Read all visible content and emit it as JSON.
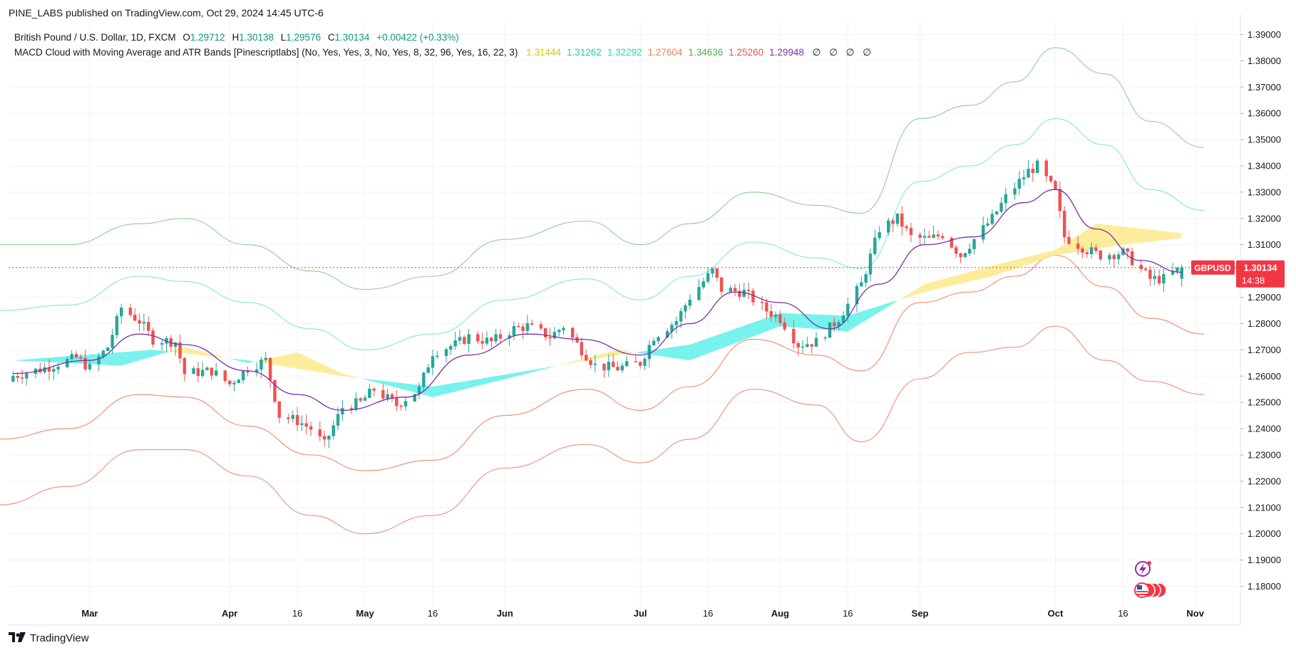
{
  "header": {
    "published": "PINE_LABS published on TradingView.com, Oct 29, 2024 14:45 UTC-6"
  },
  "legend": {
    "symbol": "British Pound / U.S. Dollar, 1D, FXCM",
    "o_label": "O",
    "o_value": "1.29712",
    "h_label": "H",
    "h_value": "1.30138",
    "l_label": "L",
    "l_value": "1.29576",
    "c_label": "C",
    "c_value": "1.30134",
    "change": "+0.00422 (+0.33%)",
    "indicator": "MACD Cloud with Moving Average and ATR Bands [Pinescriptlabs] (No, Yes, Yes, 3, No, Yes, 8, 32, 96, Yes, 16, 22, 3)",
    "indicator_values": [
      {
        "value": "1.31444",
        "color": "#e5c200"
      },
      {
        "value": "1.31262",
        "color": "#26c6a6"
      },
      {
        "value": "1.32292",
        "color": "#2ad4b0"
      },
      {
        "value": "1.27604",
        "color": "#f57c4e"
      },
      {
        "value": "1.34636",
        "color": "#4caf50"
      },
      {
        "value": "1.25260",
        "color": "#e05252"
      },
      {
        "value": "1.29948",
        "color": "#7b2fa8"
      }
    ],
    "nulls": "∅ ∅ ∅ ∅"
  },
  "price_badge": {
    "symbol": "GBPUSD",
    "price": "1.30134",
    "countdown": "14:38"
  },
  "footer": {
    "brand": "TradingView",
    "logo_icon": "tradingview-logo-icon"
  },
  "colors": {
    "up": "#26a69a",
    "down": "#ef5350",
    "ma": "#7b2fa8",
    "cloud_bull": "#5ff0ea",
    "cloud_bear": "#fde98a",
    "atr_up_outer": "#8fd08f",
    "atr_up_inner": "#7fe8dc",
    "atr_dn_inner": "#f4896b",
    "atr_dn_outer": "#f0907a",
    "badge": "#f23645"
  },
  "chart_data": {
    "type": "candlestick",
    "y_range": [
      1.175,
      1.395
    ],
    "y_ticks": [
      "1.39000",
      "1.38000",
      "1.37000",
      "1.36000",
      "1.35000",
      "1.34000",
      "1.33000",
      "1.32000",
      "1.31000",
      "1.30000",
      "1.29000",
      "1.28000",
      "1.27000",
      "1.26000",
      "1.25000",
      "1.24000",
      "1.23000",
      "1.22000",
      "1.21000",
      "1.20000",
      "1.19000",
      "1.18000"
    ],
    "x_range_days": [
      "2024-02-12",
      "2024-11-11"
    ],
    "x_ticks": [
      {
        "label": "Mar",
        "date": "2024-03-01"
      },
      {
        "label": "Apr",
        "date": "2024-04-01"
      },
      {
        "label": "16",
        "date": "2024-04-16"
      },
      {
        "label": "May",
        "date": "2024-05-01"
      },
      {
        "label": "16",
        "date": "2024-05-16"
      },
      {
        "label": "Jun",
        "date": "2024-06-01"
      },
      {
        "label": "Jul",
        "date": "2024-07-01"
      },
      {
        "label": "16",
        "date": "2024-07-16"
      },
      {
        "label": "Aug",
        "date": "2024-08-01"
      },
      {
        "label": "16",
        "date": "2024-08-16"
      },
      {
        "label": "Sep",
        "date": "2024-09-01"
      },
      {
        "label": "Oct",
        "date": "2024-10-01"
      },
      {
        "label": "16",
        "date": "2024-10-16"
      },
      {
        "label": "Nov",
        "date": "2024-11-01"
      }
    ],
    "close_anchors": [
      [
        "2024-02-13",
        1.26
      ],
      [
        "2024-02-20",
        1.263
      ],
      [
        "2024-02-27",
        1.267
      ],
      [
        "2024-03-01",
        1.263
      ],
      [
        "2024-03-05",
        1.271
      ],
      [
        "2024-03-08",
        1.286
      ],
      [
        "2024-03-12",
        1.281
      ],
      [
        "2024-03-15",
        1.274
      ],
      [
        "2024-03-20",
        1.273
      ],
      [
        "2024-03-22",
        1.261
      ],
      [
        "2024-03-28",
        1.262
      ],
      [
        "2024-04-01",
        1.257
      ],
      [
        "2024-04-05",
        1.263
      ],
      [
        "2024-04-09",
        1.266
      ],
      [
        "2024-04-12",
        1.245
      ],
      [
        "2024-04-16",
        1.243
      ],
      [
        "2024-04-19",
        1.24
      ],
      [
        "2024-04-22",
        1.234
      ],
      [
        "2024-04-26",
        1.248
      ],
      [
        "2024-04-30",
        1.25
      ],
      [
        "2024-05-03",
        1.255
      ],
      [
        "2024-05-08",
        1.249
      ],
      [
        "2024-05-13",
        1.255
      ],
      [
        "2024-05-16",
        1.269
      ],
      [
        "2024-05-21",
        1.272
      ],
      [
        "2024-05-24",
        1.275
      ],
      [
        "2024-05-29",
        1.273
      ],
      [
        "2024-06-03",
        1.278
      ],
      [
        "2024-06-06",
        1.279
      ],
      [
        "2024-06-11",
        1.275
      ],
      [
        "2024-06-14",
        1.279
      ],
      [
        "2024-06-18",
        1.27
      ],
      [
        "2024-06-21",
        1.264
      ],
      [
        "2024-06-26",
        1.263
      ],
      [
        "2024-07-01",
        1.265
      ],
      [
        "2024-07-04",
        1.275
      ],
      [
        "2024-07-09",
        1.281
      ],
      [
        "2024-07-12",
        1.29
      ],
      [
        "2024-07-17",
        1.3
      ],
      [
        "2024-07-19",
        1.293
      ],
      [
        "2024-07-24",
        1.292
      ],
      [
        "2024-07-29",
        1.285
      ],
      [
        "2024-08-01",
        1.282
      ],
      [
        "2024-08-05",
        1.272
      ],
      [
        "2024-08-09",
        1.273
      ],
      [
        "2024-08-14",
        1.282
      ],
      [
        "2024-08-19",
        1.295
      ],
      [
        "2024-08-23",
        1.316
      ],
      [
        "2024-08-27",
        1.32
      ],
      [
        "2024-08-30",
        1.313
      ],
      [
        "2024-09-03",
        1.312
      ],
      [
        "2024-09-06",
        1.314
      ],
      [
        "2024-09-10",
        1.306
      ],
      [
        "2024-09-13",
        1.312
      ],
      [
        "2024-09-17",
        1.32
      ],
      [
        "2024-09-20",
        1.328
      ],
      [
        "2024-09-25",
        1.338
      ],
      [
        "2024-09-27",
        1.34
      ],
      [
        "2024-10-01",
        1.33
      ],
      [
        "2024-10-03",
        1.313
      ],
      [
        "2024-10-08",
        1.308
      ],
      [
        "2024-10-11",
        1.306
      ],
      [
        "2024-10-16",
        1.307
      ],
      [
        "2024-10-18",
        1.304
      ],
      [
        "2024-10-22",
        1.297
      ],
      [
        "2024-10-25",
        1.297
      ],
      [
        "2024-10-29",
        1.30134
      ]
    ],
    "ma_anchors": [
      [
        "2024-02-13",
        1.261
      ],
      [
        "2024-03-01",
        1.266
      ],
      [
        "2024-03-12",
        1.276
      ],
      [
        "2024-03-22",
        1.272
      ],
      [
        "2024-04-05",
        1.262
      ],
      [
        "2024-04-16",
        1.253
      ],
      [
        "2024-04-26",
        1.247
      ],
      [
        "2024-05-10",
        1.252
      ],
      [
        "2024-05-24",
        1.268
      ],
      [
        "2024-06-06",
        1.276
      ],
      [
        "2024-06-18",
        1.274
      ],
      [
        "2024-07-01",
        1.268
      ],
      [
        "2024-07-12",
        1.28
      ],
      [
        "2024-07-22",
        1.292
      ],
      [
        "2024-08-01",
        1.288
      ],
      [
        "2024-08-12",
        1.278
      ],
      [
        "2024-08-23",
        1.295
      ],
      [
        "2024-09-02",
        1.31
      ],
      [
        "2024-09-13",
        1.313
      ],
      [
        "2024-09-24",
        1.326
      ],
      [
        "2024-10-01",
        1.331
      ],
      [
        "2024-10-10",
        1.316
      ],
      [
        "2024-10-20",
        1.304
      ],
      [
        "2024-10-29",
        1.2995
      ]
    ],
    "cloud_a": [
      [
        "2024-02-13",
        1.266
      ],
      [
        "2024-03-15",
        1.27
      ],
      [
        "2024-04-05",
        1.266
      ],
      [
        "2024-04-26",
        1.26
      ],
      [
        "2024-05-16",
        1.256
      ],
      [
        "2024-06-06",
        1.262
      ],
      [
        "2024-06-26",
        1.268
      ],
      [
        "2024-07-12",
        1.272
      ],
      [
        "2024-08-01",
        1.284
      ],
      [
        "2024-08-16",
        1.283
      ],
      [
        "2024-09-02",
        1.292
      ],
      [
        "2024-09-17",
        1.298
      ],
      [
        "2024-10-01",
        1.306
      ],
      [
        "2024-10-16",
        1.31
      ],
      [
        "2024-10-29",
        1.3126
      ]
    ],
    "cloud_b": [
      [
        "2024-02-13",
        1.266
      ],
      [
        "2024-03-08",
        1.264
      ],
      [
        "2024-03-22",
        1.271
      ],
      [
        "2024-04-05",
        1.265
      ],
      [
        "2024-04-16",
        1.269
      ],
      [
        "2024-04-26",
        1.261
      ],
      [
        "2024-05-16",
        1.252
      ],
      [
        "2024-06-06",
        1.261
      ],
      [
        "2024-06-26",
        1.27
      ],
      [
        "2024-07-12",
        1.266
      ],
      [
        "2024-08-01",
        1.279
      ],
      [
        "2024-08-16",
        1.277
      ],
      [
        "2024-09-02",
        1.295
      ],
      [
        "2024-09-17",
        1.302
      ],
      [
        "2024-10-01",
        1.308
      ],
      [
        "2024-10-10",
        1.318
      ],
      [
        "2024-10-29",
        1.3144
      ]
    ],
    "atr_upper_outer": [
      [
        "2024-02-10",
        1.31
      ],
      [
        "2024-02-25",
        1.31
      ],
      [
        "2024-03-12",
        1.318
      ],
      [
        "2024-03-22",
        1.32
      ],
      [
        "2024-04-05",
        1.31
      ],
      [
        "2024-04-19",
        1.3
      ],
      [
        "2024-05-01",
        1.293
      ],
      [
        "2024-05-16",
        1.298
      ],
      [
        "2024-06-01",
        1.312
      ],
      [
        "2024-06-19",
        1.319
      ],
      [
        "2024-07-01",
        1.31
      ],
      [
        "2024-07-12",
        1.318
      ],
      [
        "2024-07-26",
        1.33
      ],
      [
        "2024-08-09",
        1.325
      ],
      [
        "2024-08-19",
        1.322
      ],
      [
        "2024-09-01",
        1.358
      ],
      [
        "2024-09-12",
        1.363
      ],
      [
        "2024-09-22",
        1.372
      ],
      [
        "2024-10-01",
        1.385
      ],
      [
        "2024-10-12",
        1.375
      ],
      [
        "2024-10-22",
        1.357
      ],
      [
        "2024-11-03",
        1.347
      ]
    ],
    "atr_upper_inner": [
      [
        "2024-02-10",
        1.285
      ],
      [
        "2024-02-25",
        1.287
      ],
      [
        "2024-03-12",
        1.298
      ],
      [
        "2024-03-22",
        1.296
      ],
      [
        "2024-04-05",
        1.288
      ],
      [
        "2024-04-19",
        1.278
      ],
      [
        "2024-05-01",
        1.27
      ],
      [
        "2024-05-16",
        1.276
      ],
      [
        "2024-06-01",
        1.289
      ],
      [
        "2024-06-19",
        1.297
      ],
      [
        "2024-07-01",
        1.289
      ],
      [
        "2024-07-12",
        1.298
      ],
      [
        "2024-07-26",
        1.311
      ],
      [
        "2024-08-09",
        1.305
      ],
      [
        "2024-08-19",
        1.301
      ],
      [
        "2024-09-01",
        1.334
      ],
      [
        "2024-09-12",
        1.34
      ],
      [
        "2024-09-22",
        1.348
      ],
      [
        "2024-10-01",
        1.358
      ],
      [
        "2024-10-12",
        1.348
      ],
      [
        "2024-10-22",
        1.331
      ],
      [
        "2024-11-03",
        1.323
      ]
    ],
    "atr_lower_inner": [
      [
        "2024-02-10",
        1.236
      ],
      [
        "2024-02-25",
        1.24
      ],
      [
        "2024-03-12",
        1.253
      ],
      [
        "2024-03-22",
        1.252
      ],
      [
        "2024-04-05",
        1.241
      ],
      [
        "2024-04-19",
        1.23
      ],
      [
        "2024-05-01",
        1.224
      ],
      [
        "2024-05-16",
        1.228
      ],
      [
        "2024-06-01",
        1.245
      ],
      [
        "2024-06-19",
        1.255
      ],
      [
        "2024-07-01",
        1.247
      ],
      [
        "2024-07-12",
        1.256
      ],
      [
        "2024-07-26",
        1.274
      ],
      [
        "2024-08-09",
        1.268
      ],
      [
        "2024-08-19",
        1.262
      ],
      [
        "2024-09-01",
        1.288
      ],
      [
        "2024-09-12",
        1.292
      ],
      [
        "2024-09-22",
        1.298
      ],
      [
        "2024-10-01",
        1.306
      ],
      [
        "2024-10-12",
        1.294
      ],
      [
        "2024-10-22",
        1.282
      ],
      [
        "2024-11-03",
        1.276
      ]
    ],
    "atr_lower_outer": [
      [
        "2024-02-10",
        1.211
      ],
      [
        "2024-02-25",
        1.218
      ],
      [
        "2024-03-12",
        1.232
      ],
      [
        "2024-03-22",
        1.232
      ],
      [
        "2024-04-05",
        1.222
      ],
      [
        "2024-04-19",
        1.207
      ],
      [
        "2024-05-01",
        1.2
      ],
      [
        "2024-05-16",
        1.207
      ],
      [
        "2024-06-01",
        1.225
      ],
      [
        "2024-06-19",
        1.234
      ],
      [
        "2024-07-01",
        1.227
      ],
      [
        "2024-07-12",
        1.236
      ],
      [
        "2024-07-26",
        1.255
      ],
      [
        "2024-08-09",
        1.249
      ],
      [
        "2024-08-19",
        1.235
      ],
      [
        "2024-09-01",
        1.259
      ],
      [
        "2024-09-12",
        1.269
      ],
      [
        "2024-09-22",
        1.271
      ],
      [
        "2024-10-01",
        1.279
      ],
      [
        "2024-10-12",
        1.266
      ],
      [
        "2024-10-22",
        1.258
      ],
      [
        "2024-11-03",
        1.253
      ]
    ]
  }
}
